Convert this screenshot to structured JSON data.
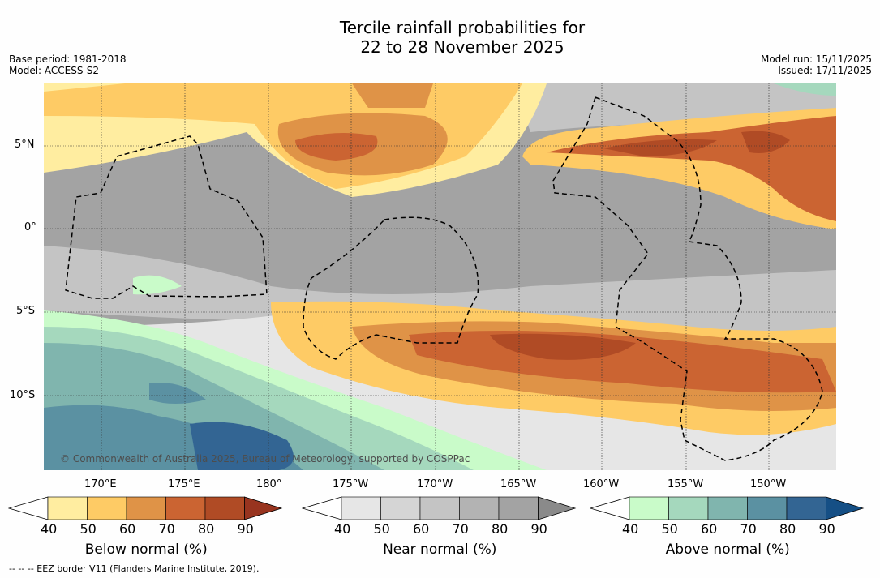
{
  "title_line1": "Tercile rainfall probabilities for",
  "title_line2": "22 to 28 November 2025",
  "base_period": "Base period: 1981-2018",
  "model": "Model: ACCESS-S2",
  "model_run": "Model run: 15/11/2025",
  "issued": "Issued: 17/11/2025",
  "copyright": "© Commonwealth of Australia 2025, Bureau of Meteorology, supported by COSPPac",
  "lat_labels": [
    "5°N",
    "0°",
    "5°S",
    "10°S"
  ],
  "lon_labels": [
    "170°E",
    "175°E",
    "180°",
    "175°W",
    "170°W",
    "165°W",
    "160°W",
    "155°W",
    "150°W"
  ],
  "colorbars": [
    {
      "label": "Below normal (%)",
      "ticks": [
        "40",
        "50",
        "60",
        "70",
        "80",
        "90"
      ],
      "colors": [
        "#ffffff",
        "#ffeda0",
        "#fecb65",
        "#df9347",
        "#cb6432",
        "#b04b25",
        "#98341f"
      ]
    },
    {
      "label": "Near normal (%)",
      "ticks": [
        "40",
        "50",
        "60",
        "70",
        "80",
        "90"
      ],
      "colors": [
        "#ffffff",
        "#e6e6e6",
        "#d5d5d5",
        "#c4c4c4",
        "#b3b3b3",
        "#a3a3a3",
        "#8a8a8a"
      ]
    },
    {
      "label": "Above normal (%)",
      "ticks": [
        "40",
        "50",
        "60",
        "70",
        "80",
        "90"
      ],
      "colors": [
        "#ffffff",
        "#c9fbc9",
        "#a5d8bd",
        "#80b5ae",
        "#5b91a2",
        "#336593",
        "#154f85"
      ]
    }
  ],
  "footnote": "--  --  -- EEZ border V11 (Flanders Marine Institute, 2019)."
}
